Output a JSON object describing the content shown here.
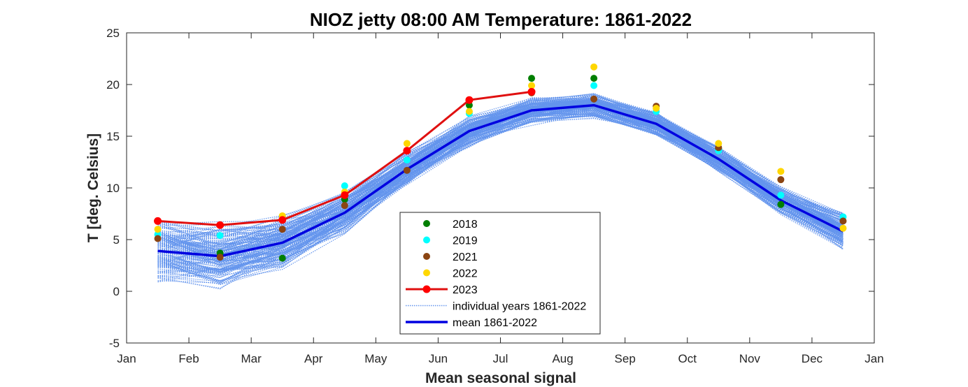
{
  "chart_data": {
    "type": "line",
    "title": "NIOZ jetty 08:00 AM Temperature: 1861-2022",
    "xlabel": "Mean seasonal signal",
    "ylabel": "T [deg. Celsius]",
    "ylim": [
      -5,
      25
    ],
    "yticks": [
      -5,
      0,
      5,
      10,
      15,
      20,
      25
    ],
    "xtick_labels": [
      "Jan",
      "Feb",
      "Mar",
      "Apr",
      "May",
      "Jun",
      "Jul",
      "Aug",
      "Sep",
      "Oct",
      "Nov",
      "Dec",
      "Jan"
    ],
    "x_months": [
      0.5,
      1.5,
      2.5,
      3.5,
      4.5,
      5.5,
      6.5,
      7.5,
      8.5,
      9.5,
      10.5,
      11.5
    ],
    "grid": false,
    "legend_position": "bottom-center",
    "series": [
      {
        "name": "2018",
        "style": "markers",
        "color": "#007f00",
        "values": [
          null,
          3.7,
          3.2,
          8.9,
          null,
          18.0,
          20.6,
          20.6,
          null,
          13.8,
          8.4,
          null
        ]
      },
      {
        "name": "2019",
        "style": "markers",
        "color": "#00ffff",
        "values": [
          5.5,
          5.4,
          null,
          10.2,
          12.7,
          17.2,
          null,
          19.9,
          17.4,
          13.6,
          9.3,
          7.2
        ]
      },
      {
        "name": "2021",
        "style": "markers",
        "color": "#8b4513",
        "values": [
          5.1,
          3.3,
          6.0,
          8.3,
          11.7,
          null,
          19.2,
          18.6,
          17.9,
          13.9,
          10.8,
          6.8
        ]
      },
      {
        "name": "2022",
        "style": "markers",
        "color": "#ffd700",
        "values": [
          6.0,
          null,
          7.3,
          9.6,
          14.3,
          17.4,
          19.9,
          21.7,
          17.7,
          14.3,
          11.6,
          6.1
        ]
      },
      {
        "name": "2023",
        "style": "line-markers",
        "color": "#e01010",
        "values": [
          6.8,
          6.4,
          6.9,
          9.3,
          13.6,
          18.5,
          19.3,
          null,
          null,
          null,
          null,
          null
        ]
      },
      {
        "name": "individual years 1861-2022",
        "style": "dotted",
        "color": "#6495ed"
      },
      {
        "name": "mean 1861-2022",
        "style": "line",
        "color": "#0000e0",
        "values": [
          3.9,
          3.4,
          4.7,
          7.6,
          11.8,
          15.5,
          17.5,
          18.0,
          16.2,
          12.8,
          8.8,
          5.8
        ]
      }
    ]
  }
}
